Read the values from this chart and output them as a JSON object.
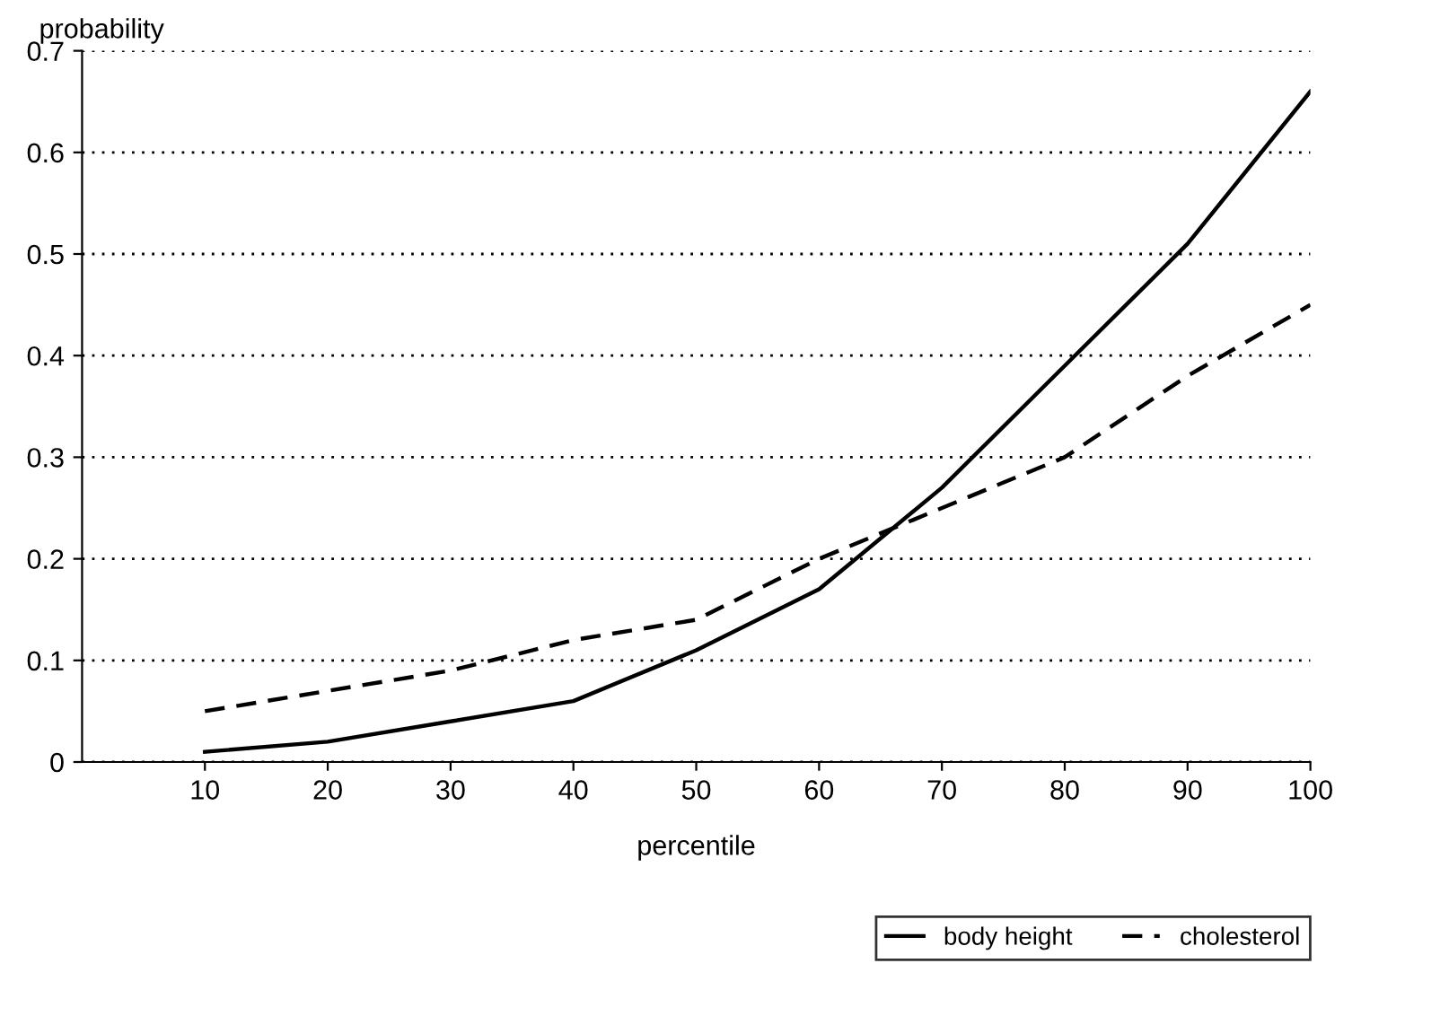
{
  "chart_data": {
    "type": "line",
    "xlabel": "percentile",
    "ylabel": "probability",
    "x": [
      10,
      20,
      30,
      40,
      50,
      60,
      70,
      80,
      90,
      100
    ],
    "series": [
      {
        "name": "body height",
        "color": "#000000",
        "line_style": "solid",
        "values": [
          0.01,
          0.02,
          0.04,
          0.06,
          0.11,
          0.17,
          0.27,
          0.39,
          0.51,
          0.66
        ]
      },
      {
        "name": "cholesterol",
        "color": "#000000",
        "line_style": "dashed",
        "values": [
          0.05,
          0.07,
          0.09,
          0.12,
          0.14,
          0.2,
          0.25,
          0.3,
          0.38,
          0.45
        ]
      }
    ],
    "xlim": [
      0,
      100
    ],
    "xticks": [
      10,
      20,
      30,
      40,
      50,
      60,
      70,
      80,
      90,
      100
    ],
    "ylim": [
      0,
      0.7
    ],
    "yticks": [
      0,
      0.1,
      0.2,
      0.3,
      0.4,
      0.5,
      0.6,
      0.7
    ],
    "grid": "y",
    "legend": "bottom right"
  }
}
